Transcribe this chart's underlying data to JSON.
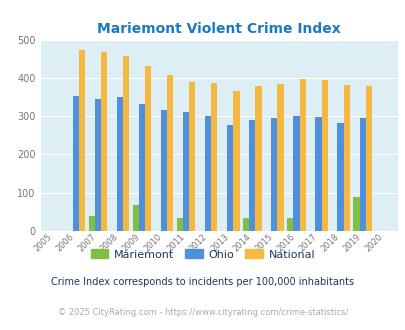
{
  "title": "Mariemont Violent Crime Index",
  "years": [
    2005,
    2006,
    2007,
    2008,
    2009,
    2010,
    2011,
    2012,
    2013,
    2014,
    2015,
    2016,
    2017,
    2018,
    2019,
    2020
  ],
  "mariemont": [
    0,
    0,
    38,
    0,
    67,
    0,
    35,
    0,
    0,
    35,
    0,
    33,
    0,
    0,
    90,
    0
  ],
  "ohio": [
    0,
    352,
    345,
    350,
    332,
    315,
    310,
    301,
    277,
    289,
    295,
    301,
    298,
    281,
    295,
    0
  ],
  "national": [
    0,
    474,
    468,
    457,
    432,
    407,
    388,
    387,
    367,
    379,
    383,
    397,
    394,
    381,
    380,
    0
  ],
  "bar_color_mariemont": "#7fc044",
  "bar_color_ohio": "#4f8fdb",
  "bar_color_national": "#f5b942",
  "bg_color": "#deeef5",
  "title_color": "#1a7abf",
  "ylim": [
    0,
    500
  ],
  "yticks": [
    0,
    100,
    200,
    300,
    400,
    500
  ],
  "subtitle": "Crime Index corresponds to incidents per 100,000 inhabitants",
  "footer": "© 2025 CityRating.com - https://www.cityrating.com/crime-statistics/",
  "subtitle_color": "#1a3a5c",
  "footer_color": "#aaaaaa",
  "legend_labels": [
    "Mariemont",
    "Ohio",
    "National"
  ]
}
